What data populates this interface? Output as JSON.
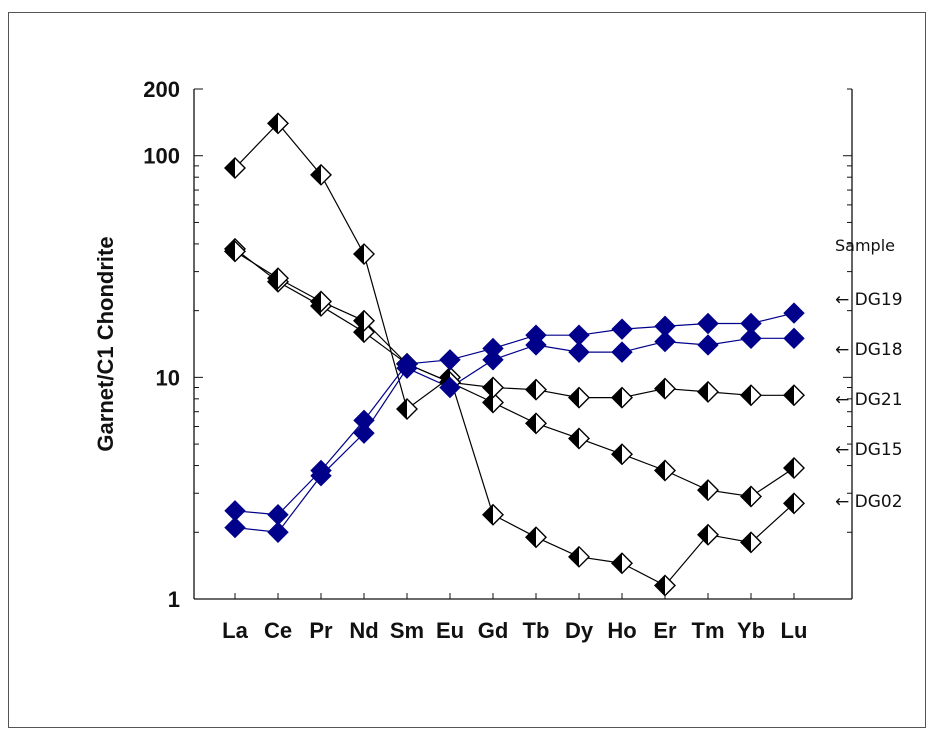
{
  "chart_data": {
    "type": "line",
    "title": "",
    "ylabel": "Garnet/C1 Chondrite",
    "xlabel": "",
    "yscale": "log",
    "ylim": [
      1,
      200
    ],
    "yticks": [
      {
        "value": 1,
        "label": "1"
      },
      {
        "value": 10,
        "label": "10"
      },
      {
        "value": 100,
        "label": "100"
      },
      {
        "value": 200,
        "label": "200"
      }
    ],
    "categories": [
      "La",
      "Ce",
      "Pr",
      "Nd",
      "Sm",
      "Eu",
      "Gd",
      "Tb",
      "Dy",
      "Ho",
      "Er",
      "Tm",
      "Yb",
      "Lu"
    ],
    "legend_title": "Sample",
    "legend_position": "right",
    "series": [
      {
        "name": "DG02",
        "color": "#000000",
        "marker": "diamond-half",
        "values": [
          88,
          140,
          82,
          36,
          7.2,
          10,
          2.4,
          1.9,
          1.55,
          1.45,
          1.15,
          1.95,
          1.8,
          2.7
        ]
      },
      {
        "name": "DG15",
        "color": "#000000",
        "marker": "diamond-half",
        "values": [
          38,
          27,
          21,
          16,
          11.5,
          9.5,
          7.7,
          6.2,
          5.3,
          4.5,
          3.8,
          3.1,
          2.9,
          3.9
        ]
      },
      {
        "name": "DG21",
        "color": "#000000",
        "marker": "diamond-half",
        "values": [
          37,
          28,
          22,
          18,
          11.5,
          9.5,
          9.0,
          8.8,
          8.1,
          8.1,
          8.9,
          8.6,
          8.3,
          8.3
        ]
      },
      {
        "name": "DG18",
        "color": "#00008B",
        "marker": "diamond-solid",
        "values": [
          2.1,
          2.0,
          3.6,
          5.6,
          11.0,
          9.0,
          12.0,
          14.0,
          13.0,
          13.0,
          14.5,
          14.0,
          15.0,
          15.0
        ]
      },
      {
        "name": "DG19",
        "color": "#00008B",
        "marker": "diamond-solid",
        "values": [
          2.5,
          2.4,
          3.8,
          6.4,
          11.5,
          12.0,
          13.5,
          15.5,
          15.5,
          16.5,
          17.0,
          17.5,
          17.5,
          19.5
        ]
      }
    ],
    "legend_order": [
      "DG19",
      "DG18",
      "DG21",
      "DG15",
      "DG02"
    ],
    "legend_arrow": "←",
    "grid": false
  }
}
